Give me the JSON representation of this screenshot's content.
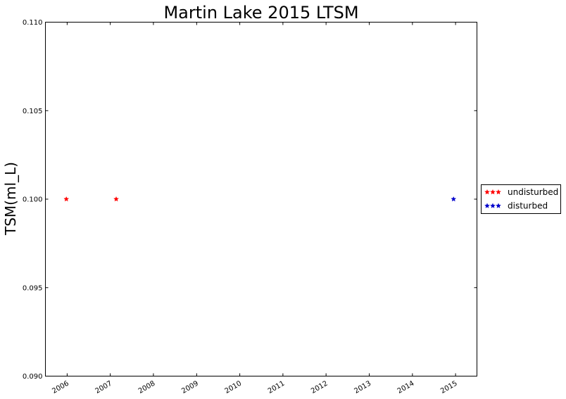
{
  "chart_data": {
    "type": "scatter",
    "title": "Martin Lake 2015 LTSM",
    "xlabel": "",
    "ylabel": "TSM(ml_L)",
    "x_tick_labels": [
      "2006",
      "2007",
      "2008",
      "2009",
      "2010",
      "2011",
      "2012",
      "2013",
      "2014",
      "2015"
    ],
    "y_tick_labels": [
      "0.090",
      "0.095",
      "0.100",
      "0.105",
      "0.110"
    ],
    "ylim": [
      0.09,
      0.11
    ],
    "xlim": [
      "2005-07-01",
      "2015-07-01"
    ],
    "grid": false,
    "legend_position": "right",
    "series": [
      {
        "name": "undisturbed",
        "color": "#ff0000",
        "marker": "star",
        "points": [
          {
            "x": "2005-12-25",
            "y": 0.1
          },
          {
            "x": "2007-02-20",
            "y": 0.1
          }
        ]
      },
      {
        "name": "disturbed",
        "color": "#0000cc",
        "marker": "star",
        "points": [
          {
            "x": "2014-12-15",
            "y": 0.1
          }
        ]
      }
    ]
  }
}
